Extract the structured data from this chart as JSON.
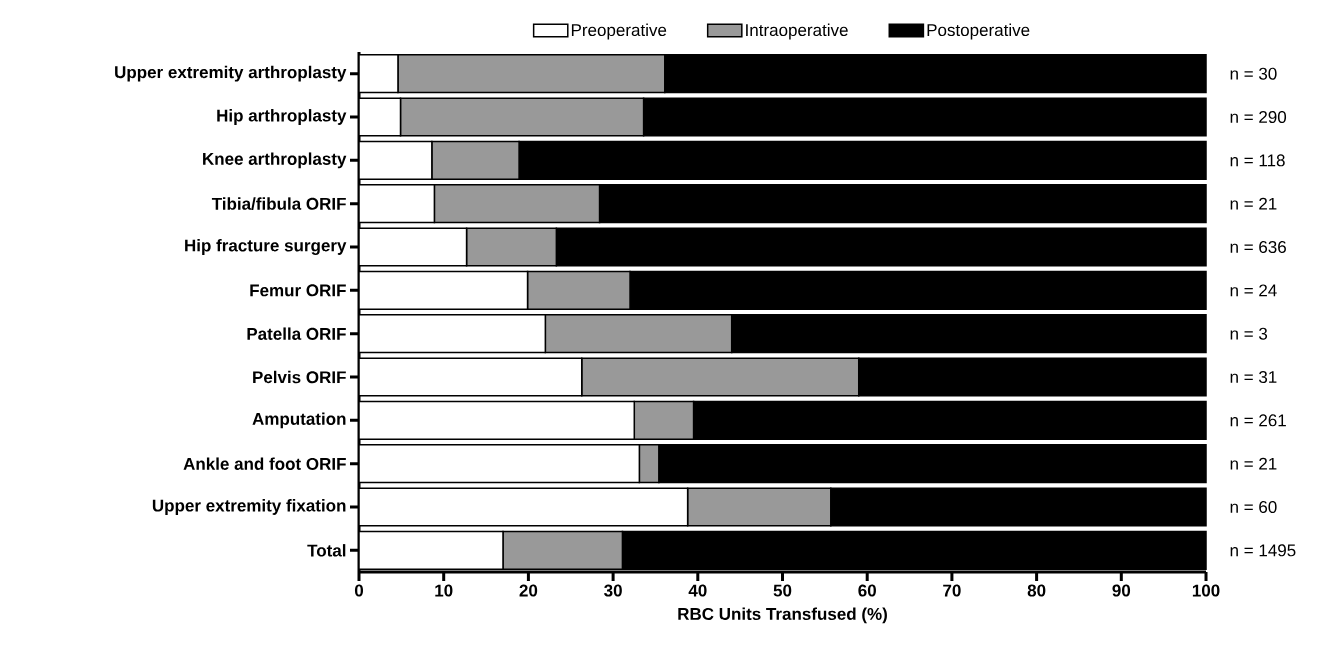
{
  "chart_data": {
    "type": "bar",
    "orientation": "horizontal",
    "stacked": true,
    "xlabel": "RBC Units Transfused (%)",
    "categories": [
      "Upper extremity arthroplasty",
      "Hip arthroplasty",
      "Knee arthroplasty",
      "Tibia/fibula ORIF",
      "Hip fracture surgery",
      "Femur ORIF",
      "Patella ORIF",
      "Pelvis ORIF",
      "Amputation",
      "Ankle and foot ORIF",
      "Upper extremity fixation",
      "Total"
    ],
    "series": [
      {
        "name": "Preoperative",
        "color": "#ffffff",
        "values": [
          4.6,
          4.9,
          8.6,
          8.9,
          12.7,
          19.9,
          22.0,
          26.3,
          32.5,
          33.1,
          38.8,
          17.0
        ]
      },
      {
        "name": "Intraoperative",
        "color": "#999999",
        "values": [
          31.5,
          28.7,
          10.3,
          19.5,
          10.6,
          12.1,
          22.0,
          32.7,
          7.0,
          2.3,
          16.9,
          14.1
        ]
      },
      {
        "name": "Postoperative",
        "color": "#000000",
        "values": [
          63.9,
          66.4,
          81.1,
          71.6,
          76.7,
          68.0,
          56.0,
          41.0,
          60.5,
          64.6,
          44.3,
          68.9
        ]
      }
    ],
    "xlim": [
      0,
      100
    ],
    "xticks": [
      0,
      10,
      20,
      30,
      40,
      50,
      60,
      70,
      80,
      90,
      100
    ],
    "legend": "top",
    "annotations": [
      "n = 30",
      "n = 290",
      "n = 118",
      "n = 21",
      "n = 636",
      "n = 24",
      "n = 3",
      "n = 31",
      "n = 261",
      "n = 21",
      "n = 60",
      "n = 1495"
    ]
  }
}
